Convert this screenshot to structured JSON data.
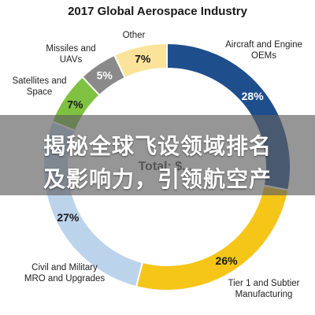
{
  "chart_data": {
    "type": "pie",
    "title": "2017 Global Aerospace Industry",
    "center_label": "Total: $...",
    "categories": [
      "Aircraft and Engine OEMs",
      "Tier 1 and Subtier Manufacturing",
      "Civil and Military MRO and Upgrades",
      "Satellites and Space",
      "Missiles and UAVs",
      "Other"
    ],
    "values": [
      28,
      26,
      27,
      7,
      5,
      7
    ],
    "value_labels": [
      "28%",
      "26%",
      "27%",
      "7%",
      "5%",
      "7%"
    ],
    "colors": [
      "#1f4e8c",
      "#f5c518",
      "#bcd3ec",
      "#7fc241",
      "#8a8a8a",
      "#fbe49a"
    ],
    "label_colors": [
      "#ffffff",
      "#1a1a1a",
      "#1a1a1a",
      "#1a1a1a",
      "#ffffff",
      "#1a1a1a"
    ],
    "category_lines": [
      [
        "Aircraft and Engine",
        "OEMs"
      ],
      [
        "Tier 1 and Subtier",
        "Manufacturing"
      ],
      [
        "Civil and Military",
        "MRO and Upgrades"
      ],
      [
        "Satellites and",
        "Space"
      ],
      [
        "Missiles and",
        "UAVs"
      ],
      [
        "Other"
      ]
    ],
    "legend": "none"
  },
  "overlay": {
    "line1": "揭秘全球飞设领域排名",
    "line2": "及影响力，引领航空产"
  }
}
